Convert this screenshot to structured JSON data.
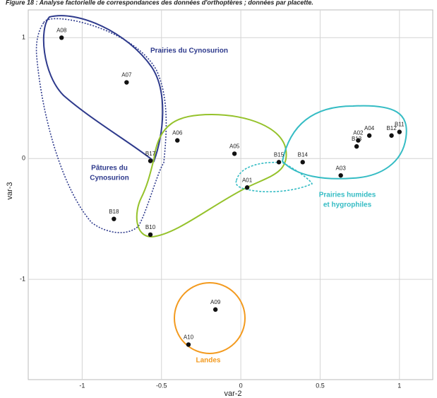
{
  "chart_data": {
    "type": "scatter",
    "title": "Figure 18 : Analyse factorielle de correspondances des données d'orthoptères ; données par placette.",
    "x_label": "var-2",
    "y_label": "var-3",
    "point_labels": [
      "A08",
      "A07",
      "A06",
      "B17",
      "A05",
      "B15",
      "B14",
      "A01",
      "A03",
      "A02",
      "B13",
      "A04",
      "B12",
      "B11",
      "B18",
      "B10",
      "A09",
      "A10"
    ],
    "x": [
      -1.13,
      -0.72,
      -0.4,
      -0.57,
      -0.04,
      0.24,
      0.39,
      0.04,
      0.63,
      0.74,
      0.73,
      0.81,
      0.95,
      1.0,
      -0.8,
      -0.57,
      -0.16,
      -0.33
    ],
    "values": [
      1.0,
      0.63,
      0.15,
      -0.02,
      0.04,
      -0.03,
      -0.03,
      -0.24,
      -0.14,
      0.15,
      0.1,
      0.19,
      0.19,
      0.22,
      -0.5,
      -0.63,
      -1.25,
      -1.54
    ],
    "color": "#111111",
    "xlim": [
      -1.34,
      1.21
    ],
    "ylim": [
      -1.83,
      1.23
    ],
    "xticks": [
      -1,
      -0.5,
      0,
      0.5,
      1
    ],
    "yticks": [
      -1,
      0,
      1
    ],
    "grid": true,
    "annotations": [
      {
        "lines": [
          "Prairies du Cynosurion"
        ],
        "color": "#2e3a8c"
      },
      {
        "lines": [
          "Pâtures du",
          "Cynosurion"
        ],
        "color": "#2e3a8c"
      },
      {
        "lines": [
          "Prairies humides",
          "et hygrophiles"
        ],
        "color": "#35bcc4"
      },
      {
        "lines": [
          "Landes"
        ],
        "color": "#f39a1e"
      }
    ]
  }
}
